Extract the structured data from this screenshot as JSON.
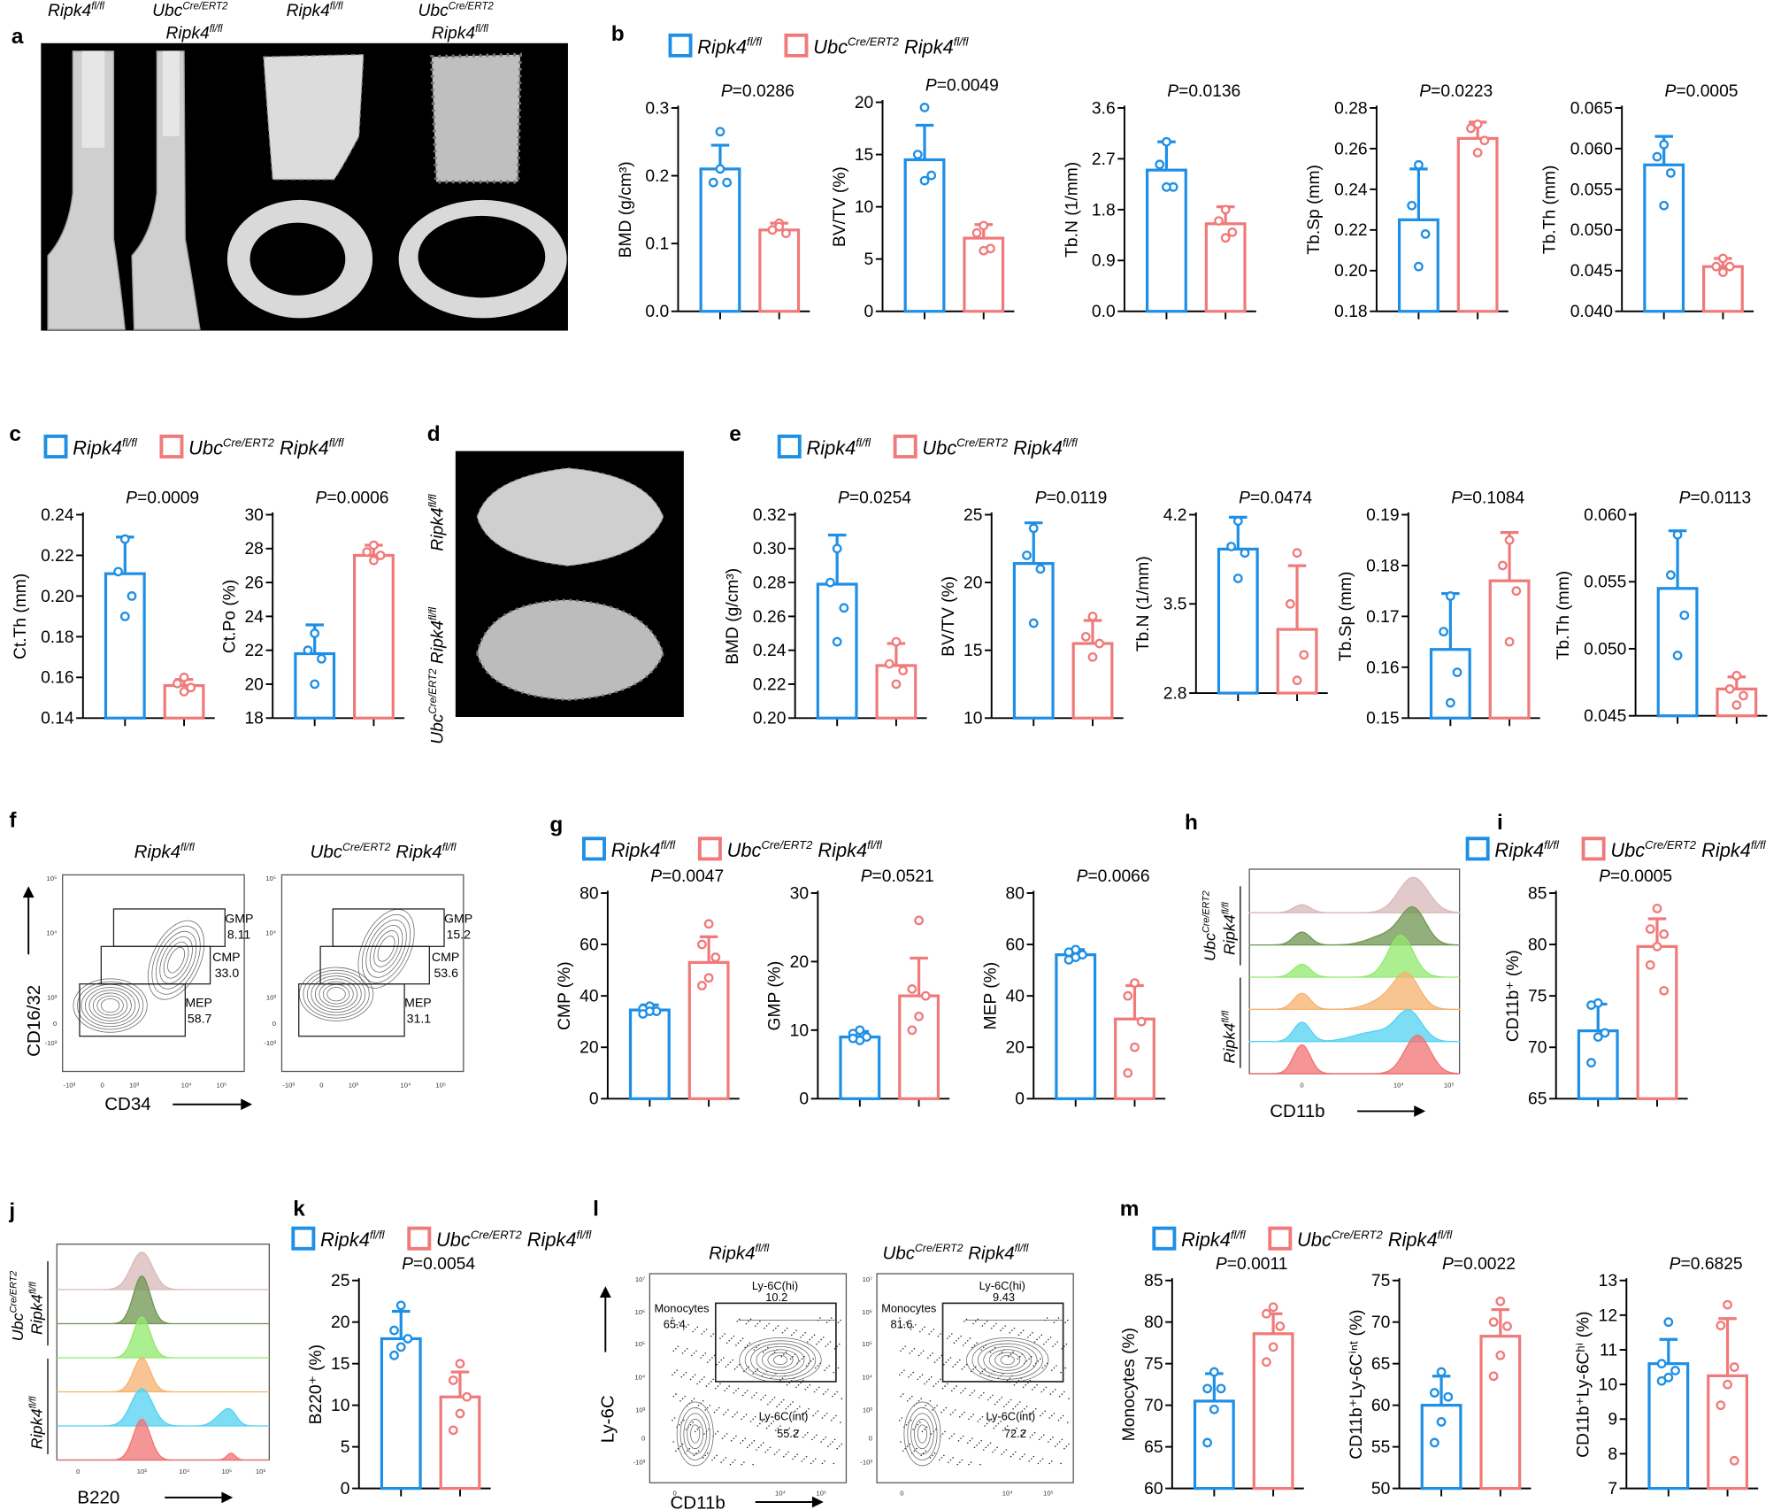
{
  "colors": {
    "control": "#1e8fe6",
    "knockout": "#f07a7a",
    "background": "#000000"
  },
  "genotype": {
    "control": {
      "base": "Ripk4",
      "sup": "fl/fl"
    },
    "knockout": {
      "pre": "Ubc",
      "pre_sup": "Cre/ERT2",
      "base": "Ripk4",
      "sup": "fl/fl"
    }
  },
  "panel_letters": [
    "a",
    "b",
    "c",
    "d",
    "e",
    "f",
    "g",
    "h",
    "i",
    "j",
    "k",
    "l",
    "m"
  ],
  "panel_f": {
    "x_label": "CD34",
    "y_label": "CD16/32",
    "x_ticks": [
      "-10³",
      "0",
      "10³",
      "10⁴",
      "10⁵"
    ],
    "y_ticks": [
      "10⁵",
      "10⁴",
      "10³",
      "0",
      "-10³"
    ],
    "plots": [
      {
        "gates": [
          {
            "name": "GMP",
            "value": "8.11"
          },
          {
            "name": "CMP",
            "value": "33.0"
          },
          {
            "name": "MEP",
            "value": "58.7"
          }
        ]
      },
      {
        "gates": [
          {
            "name": "GMP",
            "value": "15.2"
          },
          {
            "name": "CMP",
            "value": "53.6"
          },
          {
            "name": "MEP",
            "value": "31.1"
          }
        ]
      }
    ]
  },
  "panel_h": {
    "x_label": "CD11b",
    "x_ticks": [
      "0",
      "10⁴",
      "10⁵"
    ],
    "histogram_colors": [
      "#d8b8b8",
      "#6f9450",
      "#8fea6c",
      "#f6b26e",
      "#52d2f2",
      "#f27272"
    ]
  },
  "panel_j": {
    "x_label": "B220",
    "x_ticks": [
      "0",
      "10³",
      "10⁴",
      "10⁵",
      "10⁶"
    ],
    "histogram_colors": [
      "#d8b8b8",
      "#6f9450",
      "#8fea6c",
      "#f6b26e",
      "#52d2f2",
      "#f27272"
    ]
  },
  "panel_l": {
    "x_label": "CD11b",
    "y_label": "Ly-6C",
    "x_ticks": [
      "0",
      "10⁴",
      "10⁵"
    ],
    "y_ticks": [
      "10⁷",
      "10⁶",
      "10⁵",
      "10⁴",
      "10³",
      "0",
      "-10³"
    ],
    "plots": [
      {
        "monocytes": {
          "name": "Monocytes",
          "value": "65.4"
        },
        "hi": {
          "name": "Ly-6C(hi)",
          "value": "10.2"
        },
        "int": {
          "name": "Ly-6C(int)",
          "value": "55.2"
        }
      },
      {
        "monocytes": {
          "name": "Monocytes",
          "value": "81.6"
        },
        "hi": {
          "name": "Ly-6C(hi)",
          "value": "9.43"
        },
        "int": {
          "name": "Ly-6C(int)",
          "value": "72.2"
        }
      }
    ]
  },
  "chart_data": [
    {
      "id": "b0",
      "type": "bar",
      "ylabel": "BMD (g/cm³)",
      "p": "=0.0286",
      "ticks": [
        "0.0",
        "0.1",
        "0.2",
        "0.3"
      ],
      "ylim": [
        0,
        0.3
      ],
      "series": [
        {
          "mean": 0.21,
          "sd": 0.035,
          "points": [
            0.265,
            0.19,
            0.19,
            0.21
          ]
        },
        {
          "mean": 0.12,
          "sd": 0.01,
          "points": [
            0.13,
            0.12,
            0.115,
            0.125
          ]
        }
      ]
    },
    {
      "id": "b1",
      "type": "bar",
      "ylabel": "BV/TV (%)",
      "p": "=0.0049",
      "ticks": [
        "0",
        "5",
        "10",
        "15",
        "20"
      ],
      "ylim": [
        0,
        20
      ],
      "series": [
        {
          "mean": 14.5,
          "sd": 3.3,
          "points": [
            19.5,
            15,
            13,
            12.5
          ]
        },
        {
          "mean": 7,
          "sd": 1.3,
          "points": [
            8.2,
            7.5,
            6,
            5.8
          ]
        }
      ]
    },
    {
      "id": "b2",
      "type": "bar",
      "ylabel": "Tb.N (1/mm)",
      "p": "=0.0136",
      "ticks": [
        "0.0",
        "0.9",
        "1.8",
        "2.7",
        "3.6"
      ],
      "ylim": [
        0,
        3.6
      ],
      "series": [
        {
          "mean": 2.5,
          "sd": 0.5,
          "points": [
            3.0,
            2.6,
            2.2,
            2.2
          ]
        },
        {
          "mean": 1.55,
          "sd": 0.3,
          "points": [
            1.8,
            1.6,
            1.4,
            1.3
          ]
        }
      ]
    },
    {
      "id": "b3",
      "type": "bar",
      "ylabel": "Tb.Sp (mm)",
      "p": "=0.0223",
      "ticks": [
        "0.18",
        "0.20",
        "0.22",
        "0.24",
        "0.26",
        "0.28"
      ],
      "ylim": [
        0.18,
        0.28
      ],
      "series": [
        {
          "mean": 0.225,
          "sd": 0.025,
          "points": [
            0.252,
            0.232,
            0.218,
            0.202
          ]
        },
        {
          "mean": 0.265,
          "sd": 0.008,
          "points": [
            0.272,
            0.27,
            0.264,
            0.258
          ]
        }
      ]
    },
    {
      "id": "b4",
      "type": "bar",
      "ylabel": "Tb.Th (mm)",
      "p": "=0.0005",
      "ticks": [
        "0.040",
        "0.045",
        "0.050",
        "0.055",
        "0.060",
        "0.065"
      ],
      "ylim": [
        0.04,
        0.065
      ],
      "series": [
        {
          "mean": 0.058,
          "sd": 0.0035,
          "points": [
            0.0605,
            0.059,
            0.057,
            0.053
          ]
        },
        {
          "mean": 0.0455,
          "sd": 0.001,
          "points": [
            0.0465,
            0.0455,
            0.0455,
            0.0448
          ]
        }
      ]
    },
    {
      "id": "c0",
      "type": "bar",
      "ylabel": "Ct.Th (mm)",
      "p": "=0.0009",
      "ticks": [
        "0.14",
        "0.16",
        "0.18",
        "0.20",
        "0.22",
        "0.24"
      ],
      "ylim": [
        0.14,
        0.24
      ],
      "series": [
        {
          "mean": 0.211,
          "sd": 0.018,
          "points": [
            0.228,
            0.212,
            0.2,
            0.19
          ]
        },
        {
          "mean": 0.156,
          "sd": 0.003,
          "points": [
            0.16,
            0.157,
            0.155,
            0.153
          ]
        }
      ]
    },
    {
      "id": "c1",
      "type": "bar",
      "ylabel": "Ct.Po (%)",
      "p": "=0.0006",
      "ticks": [
        "18",
        "20",
        "22",
        "24",
        "26",
        "28",
        "30"
      ],
      "ylim": [
        18,
        30
      ],
      "series": [
        {
          "mean": 21.8,
          "sd": 1.7,
          "points": [
            23,
            22,
            21.5,
            20
          ]
        },
        {
          "mean": 27.6,
          "sd": 0.6,
          "points": [
            28.2,
            27.8,
            27.6,
            27.3
          ]
        }
      ]
    },
    {
      "id": "e0",
      "type": "bar",
      "ylabel": "BMD (g/cm³)",
      "p": "=0.0254",
      "ticks": [
        "0.20",
        "0.22",
        "0.24",
        "0.26",
        "0.28",
        "0.30",
        "0.32"
      ],
      "ylim": [
        0.2,
        0.32
      ],
      "series": [
        {
          "mean": 0.279,
          "sd": 0.029,
          "points": [
            0.3,
            0.28,
            0.265,
            0.245
          ]
        },
        {
          "mean": 0.231,
          "sd": 0.013,
          "points": [
            0.245,
            0.232,
            0.228,
            0.22
          ]
        }
      ]
    },
    {
      "id": "e1",
      "type": "bar",
      "ylabel": "BV/TV (%)",
      "p": "=0.0119",
      "ticks": [
        "10",
        "15",
        "20",
        "25"
      ],
      "ylim": [
        10,
        25
      ],
      "series": [
        {
          "mean": 21.4,
          "sd": 3,
          "points": [
            24,
            22,
            21,
            17
          ]
        },
        {
          "mean": 15.5,
          "sd": 1.7,
          "points": [
            17.5,
            16,
            15.5,
            14.5
          ]
        }
      ]
    },
    {
      "id": "e2",
      "type": "bar",
      "ylabel": "Tb.N (1/mm)",
      "p": "=0.0474",
      "ticks": [
        "2.8",
        "3.5",
        "4.2"
      ],
      "ylim": [
        2.8,
        4.2
      ],
      "series": [
        {
          "mean": 3.93,
          "sd": 0.25,
          "points": [
            4.15,
            3.95,
            3.9,
            3.7
          ]
        },
        {
          "mean": 3.3,
          "sd": 0.5,
          "points": [
            3.9,
            3.5,
            3.1,
            2.9
          ]
        }
      ]
    },
    {
      "id": "e3",
      "type": "bar",
      "ylabel": "Tb.Sp (mm)",
      "p": "=0.1084",
      "ticks": [
        "0.15",
        "0.16",
        "0.17",
        "0.18",
        "0.19"
      ],
      "ylim": [
        0.15,
        0.19
      ],
      "series": [
        {
          "mean": 0.1635,
          "sd": 0.011,
          "points": [
            0.174,
            0.167,
            0.159,
            0.153
          ]
        },
        {
          "mean": 0.177,
          "sd": 0.0095,
          "points": [
            0.185,
            0.18,
            0.175,
            0.165
          ]
        }
      ]
    },
    {
      "id": "e4",
      "type": "bar",
      "ylabel": "Tb.Th (mm)",
      "p": "=0.0113",
      "ticks": [
        "0.045",
        "0.050",
        "0.055",
        "0.060"
      ],
      "ylim": [
        0.045,
        0.06
      ],
      "series": [
        {
          "mean": 0.0545,
          "sd": 0.0043,
          "points": [
            0.0585,
            0.0555,
            0.0525,
            0.0495
          ]
        },
        {
          "mean": 0.047,
          "sd": 0.0009,
          "points": [
            0.048,
            0.047,
            0.0465,
            0.0458
          ]
        }
      ]
    },
    {
      "id": "g0",
      "type": "bar",
      "ylabel": "CMP (%)",
      "p": "=0.0047",
      "ticks": [
        "0",
        "20",
        "40",
        "60",
        "80"
      ],
      "ylim": [
        0,
        80
      ],
      "series": [
        {
          "mean": 34.5,
          "sd": 2,
          "points": [
            36,
            35,
            34,
            34,
            33
          ]
        },
        {
          "mean": 53,
          "sd": 10,
          "points": [
            68,
            60,
            55,
            47,
            44
          ]
        }
      ]
    },
    {
      "id": "g1",
      "type": "bar",
      "ylabel": "GMP (%)",
      "p": "=0.0521",
      "ticks": [
        "0",
        "10",
        "20",
        "30"
      ],
      "ylim": [
        0,
        30
      ],
      "series": [
        {
          "mean": 9,
          "sd": 0.8,
          "points": [
            10,
            9.5,
            9,
            8.5,
            8.8
          ]
        },
        {
          "mean": 15,
          "sd": 5.5,
          "points": [
            26,
            16,
            15,
            12,
            10
          ]
        }
      ]
    },
    {
      "id": "g2",
      "type": "bar",
      "ylabel": "MEP (%)",
      "p": "=0.0066",
      "ticks": [
        "0",
        "20",
        "40",
        "60",
        "80"
      ],
      "ylim": [
        0,
        80
      ],
      "series": [
        {
          "mean": 56,
          "sd": 2,
          "points": [
            58,
            57,
            56,
            55,
            54
          ]
        },
        {
          "mean": 31,
          "sd": 13,
          "points": [
            45,
            40,
            30,
            20,
            10
          ]
        }
      ]
    },
    {
      "id": "i0",
      "type": "bar",
      "ylabel": "CD11b⁺ (%)",
      "p": "=0.0005",
      "ticks": [
        "65",
        "70",
        "75",
        "80",
        "85"
      ],
      "ylim": [
        65,
        85
      ],
      "series": [
        {
          "mean": 71.6,
          "sd": 2.6,
          "points": [
            74.3,
            74.1,
            71.4,
            71.0,
            68.5
          ]
        },
        {
          "mean": 79.8,
          "sd": 2.7,
          "points": [
            83.5,
            81.5,
            81,
            79.8,
            78,
            75.5
          ]
        }
      ]
    },
    {
      "id": "k0",
      "type": "bar",
      "ylabel": "B220⁺ (%)",
      "p": "=0.0054",
      "ticks": [
        "0",
        "5",
        "10",
        "15",
        "20",
        "25"
      ],
      "ylim": [
        0,
        25
      ],
      "series": [
        {
          "mean": 18,
          "sd": 3.3,
          "points": [
            22,
            19,
            18,
            17,
            16
          ]
        },
        {
          "mean": 11,
          "sd": 3,
          "points": [
            15,
            13,
            11,
            9,
            7
          ]
        }
      ]
    },
    {
      "id": "m0",
      "type": "bar",
      "ylabel": "Monocytes (%)",
      "p": "=0.0011",
      "ticks": [
        "60",
        "65",
        "70",
        "75",
        "80",
        "85"
      ],
      "ylim": [
        60,
        85
      ],
      "series": [
        {
          "mean": 70.5,
          "sd": 3.3,
          "points": [
            74,
            72,
            72,
            69.5,
            65.5
          ]
        },
        {
          "mean": 78.6,
          "sd": 2.4,
          "points": [
            81.8,
            81,
            79.5,
            77,
            75.2
          ]
        }
      ]
    },
    {
      "id": "m1",
      "type": "bar",
      "ylabel": "CD11b⁺Ly-6Cⁱⁿᵗ (%)",
      "p": "=0.0022",
      "ticks": [
        "50",
        "55",
        "60",
        "65",
        "70",
        "75"
      ],
      "ylim": [
        50,
        75
      ],
      "series": [
        {
          "mean": 60,
          "sd": 3.5,
          "points": [
            64,
            61.5,
            61,
            58,
            55.5
          ]
        },
        {
          "mean": 68.3,
          "sd": 3.2,
          "points": [
            72.5,
            70,
            69.5,
            66,
            63.5
          ]
        }
      ]
    },
    {
      "id": "m2",
      "type": "bar",
      "ylabel": "CD11b⁺Ly-6Cʰⁱ (%)",
      "p": "=0.6825",
      "ticks": [
        "7",
        "8",
        "9",
        "10",
        "11",
        "12",
        "13"
      ],
      "ylim": [
        7,
        13
      ],
      "series": [
        {
          "mean": 10.6,
          "sd": 0.7,
          "points": [
            11.8,
            10.6,
            10.4,
            10.2,
            10.1
          ]
        },
        {
          "mean": 10.25,
          "sd": 1.65,
          "points": [
            12.3,
            11.7,
            10.5,
            10.0,
            9.4,
            7.8
          ]
        }
      ]
    }
  ]
}
